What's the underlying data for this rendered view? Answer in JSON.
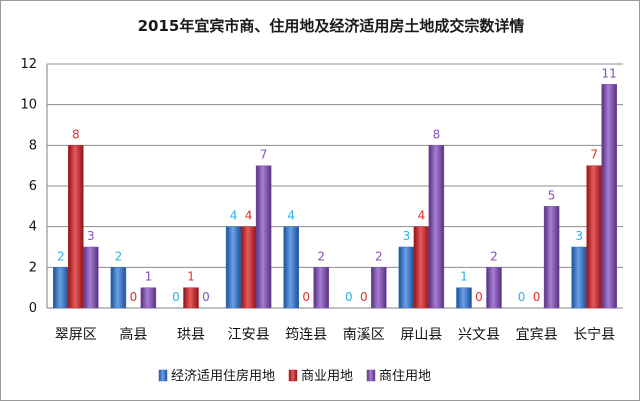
{
  "chart_data": {
    "type": "bar",
    "title": "2015年宜宾市商、住用地及经济适用房土地成交宗数详情",
    "xlabel": "",
    "ylabel": "",
    "ylim": [
      0,
      12
    ],
    "yticks": [
      0,
      2,
      4,
      6,
      8,
      10,
      12
    ],
    "grid": true,
    "legend_position": "bottom",
    "categories": [
      "翠屏区",
      "高县",
      "珙县",
      "江安县",
      "筠连县",
      "南溪区",
      "屏山县",
      "兴文县",
      "宜宾县",
      "长宁县"
    ],
    "series": [
      {
        "name": "经济适用住房用地",
        "color": "#2e6fc4",
        "label_color": "#2ab4e0",
        "values": [
          2,
          2,
          0,
          4,
          4,
          0,
          3,
          1,
          0,
          3
        ]
      },
      {
        "name": "商业用地",
        "color": "#c0282b",
        "label_color": "#e03030",
        "values": [
          8,
          0,
          1,
          4,
          0,
          0,
          4,
          0,
          0,
          7
        ]
      },
      {
        "name": "商住用地",
        "color": "#7e4fae",
        "label_color": "#8a4fbf",
        "values": [
          3,
          1,
          0,
          7,
          2,
          2,
          8,
          2,
          5,
          11
        ]
      }
    ]
  }
}
